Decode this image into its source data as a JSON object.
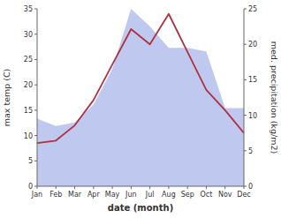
{
  "chart_data": {
    "type": "line",
    "x_label": "date (month)",
    "y_label": "max temp (C)",
    "y2_label": "med. precipitation (kg/m2)",
    "categories": [
      "Jan",
      "Feb",
      "Mar",
      "Apr",
      "May",
      "Jun",
      "Jul",
      "Aug",
      "Sep",
      "Oct",
      "Nov",
      "Dec"
    ],
    "series": [
      {
        "type": "area",
        "axis": "y2",
        "color": "#bfc8ef",
        "values": [
          9.5,
          8.5,
          9.0,
          11.5,
          16.5,
          25.0,
          22.5,
          19.5,
          19.5,
          19.0,
          11.0,
          11.0
        ]
      },
      {
        "type": "line",
        "color": "#b03040",
        "values": [
          8.5,
          9.0,
          12.0,
          17.0,
          24.0,
          31.0,
          28.0,
          34.0,
          26.5,
          19.0,
          15.0,
          10.5
        ]
      }
    ],
    "ylim": [
      0,
      35
    ],
    "yticks": [
      0,
      5,
      10,
      15,
      20,
      25,
      30,
      35
    ],
    "y2lim": [
      0,
      25
    ],
    "y2ticks": [
      0,
      5,
      10,
      15,
      20,
      25
    ],
    "grid": false
  }
}
